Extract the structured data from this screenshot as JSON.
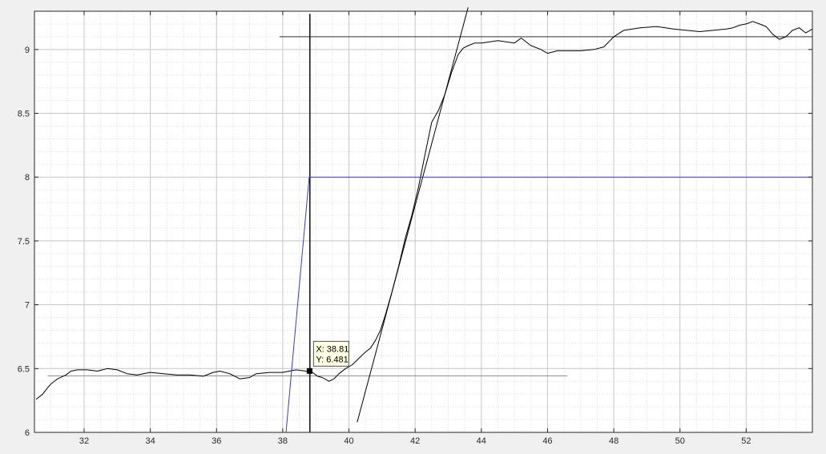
{
  "chart_data": {
    "type": "line",
    "title": "",
    "xlabel": "",
    "ylabel": "",
    "xlim": [
      30.5,
      54
    ],
    "ylim": [
      6,
      9.3
    ],
    "grid": {
      "major": true,
      "minor": true
    },
    "x_ticks": [
      32,
      34,
      36,
      38,
      40,
      42,
      44,
      46,
      48,
      50,
      52
    ],
    "y_ticks": [
      6,
      6.5,
      7,
      7.5,
      8,
      8.5,
      9
    ],
    "series": [
      {
        "color": "#000000",
        "style": "measured response",
        "x": [
          30.55,
          30.75,
          30.9,
          31.0,
          31.2,
          31.45,
          31.6,
          31.8,
          32.1,
          32.4,
          32.7,
          33.0,
          33.3,
          33.6,
          34.0,
          34.4,
          34.8,
          35.2,
          35.6,
          35.9,
          36.1,
          36.4,
          36.7,
          37.0,
          37.2,
          37.6,
          38.0,
          38.4,
          38.7,
          38.9,
          39.05,
          39.2,
          39.4,
          39.55,
          39.7,
          39.9,
          40.1,
          40.3,
          40.5,
          40.65,
          40.8,
          40.95,
          41.1,
          41.3,
          41.5,
          41.7,
          41.9,
          42.1,
          42.3,
          42.5,
          42.7,
          42.9,
          43.1,
          43.3,
          43.45,
          43.6,
          43.8,
          44.0,
          44.5,
          45.0,
          45.2,
          45.5,
          45.8,
          46.0,
          46.3,
          46.6,
          47.0,
          47.4,
          47.7,
          48.0,
          48.3,
          48.8,
          49.3,
          49.8,
          50.2,
          50.6,
          51.0,
          51.4,
          51.6,
          51.8,
          52.0,
          52.2,
          52.4,
          52.6,
          52.8,
          53.0,
          53.2,
          53.4,
          53.6,
          53.8,
          54.0
        ],
        "y": [
          6.26,
          6.3,
          6.35,
          6.38,
          6.42,
          6.45,
          6.48,
          6.49,
          6.49,
          6.48,
          6.5,
          6.49,
          6.46,
          6.45,
          6.47,
          6.46,
          6.45,
          6.45,
          6.44,
          6.47,
          6.48,
          6.46,
          6.42,
          6.43,
          6.46,
          6.47,
          6.47,
          6.49,
          6.48,
          6.47,
          6.44,
          6.43,
          6.4,
          6.42,
          6.46,
          6.5,
          6.53,
          6.58,
          6.63,
          6.66,
          6.72,
          6.8,
          6.92,
          7.1,
          7.3,
          7.52,
          7.7,
          7.92,
          8.18,
          8.43,
          8.52,
          8.65,
          8.82,
          8.96,
          9.01,
          9.03,
          9.05,
          9.05,
          9.07,
          9.05,
          9.09,
          9.03,
          9.0,
          8.97,
          8.99,
          8.99,
          8.99,
          9.0,
          9.02,
          9.1,
          9.15,
          9.17,
          9.18,
          9.16,
          9.15,
          9.14,
          9.15,
          9.16,
          9.17,
          9.19,
          9.2,
          9.22,
          9.2,
          9.18,
          9.12,
          9.08,
          9.1,
          9.15,
          9.17,
          9.13,
          9.16
        ]
      },
      {
        "color": "#2f3fd6",
        "style": "step input",
        "x": [
          38.1,
          38.8,
          54.0
        ],
        "y": [
          6.0,
          8.0,
          8.0
        ]
      }
    ],
    "reference_lines": [
      {
        "kind": "horizontal",
        "y": 6.443,
        "x": [
          30.9,
          46.6
        ],
        "color": "#8a8a8a"
      },
      {
        "kind": "horizontal",
        "y": 9.1,
        "x": [
          37.9,
          54.0
        ],
        "color": "#333333"
      },
      {
        "kind": "vertical",
        "x": 38.82,
        "y": [
          6.0,
          9.28
        ],
        "color": "#1a1a1a"
      },
      {
        "kind": "tangent",
        "x": [
          40.25,
          43.6
        ],
        "y": [
          6.08,
          9.33
        ],
        "color": "#000000"
      }
    ],
    "datatip": {
      "x_value": 38.81,
      "y_value": 6.481,
      "x_text": "X: 38.81",
      "y_text": "Y: 6.481"
    }
  }
}
